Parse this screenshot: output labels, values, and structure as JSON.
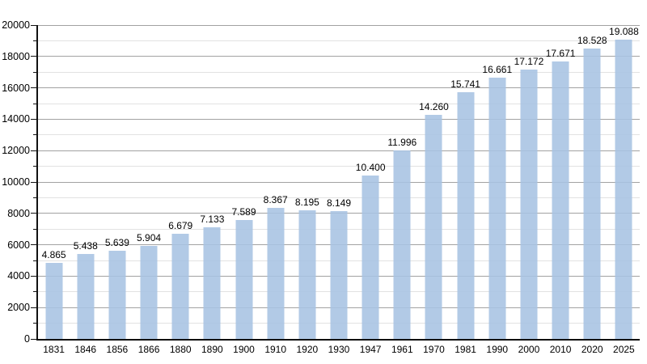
{
  "chart_data": {
    "type": "bar",
    "title": "",
    "xlabel": "",
    "ylabel": "",
    "categories": [
      "1831",
      "1846",
      "1856",
      "1866",
      "1880",
      "1890",
      "1900",
      "1910",
      "1920",
      "1930",
      "1947",
      "1961",
      "1970",
      "1981",
      "1990",
      "2000",
      "2010",
      "2020",
      "2025"
    ],
    "values": [
      4865,
      5438,
      5639,
      5904,
      6679,
      7133,
      7589,
      8367,
      8195,
      8149,
      10400,
      11996,
      14260,
      15741,
      16661,
      17172,
      17671,
      18528,
      19088
    ],
    "value_labels": [
      "4.865",
      "5.438",
      "5.639",
      "5.904",
      "6.679",
      "7.133",
      "7.589",
      "8.367",
      "8.195",
      "8.149",
      "10.400",
      "11.996",
      "14.260",
      "15.741",
      "16.661",
      "17.172",
      "17.671",
      "18.528",
      "19.088"
    ],
    "ylim": [
      0,
      20000
    ],
    "ytick_major": 2000,
    "ytick_minor": 1000,
    "ytick_labels": [
      "0",
      "2000",
      "4000",
      "6000",
      "8000",
      "10000",
      "12000",
      "14000",
      "16000",
      "18000",
      "20000"
    ],
    "grid": true,
    "legend_position": "none",
    "bar_color": "#a7c3e2",
    "bar_opacity": 0.88,
    "gridline_major_color": "#a2a2a2",
    "gridline_minor_color": "#e2e2e2",
    "axis_color": "#111111",
    "label_color": "#000000"
  }
}
